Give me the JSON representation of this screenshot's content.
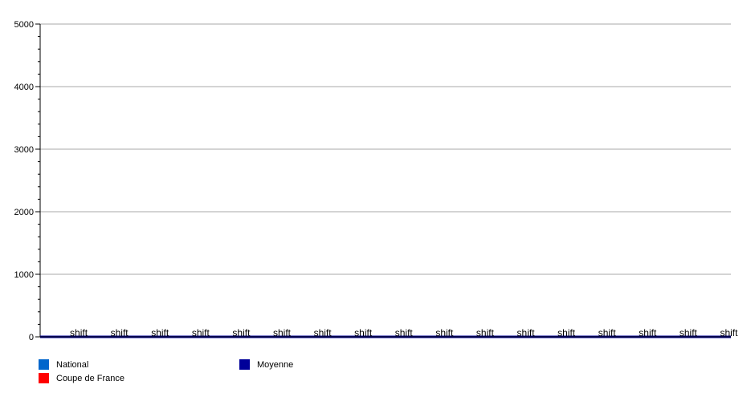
{
  "chart_data": {
    "type": "bar",
    "categories": [
      "shift",
      "shift",
      "shift",
      "shift",
      "shift",
      "shift",
      "shift",
      "shift",
      "shift",
      "shift",
      "shift",
      "shift",
      "shift",
      "shift",
      "shift",
      "shift",
      "shift"
    ],
    "series": [
      {
        "name": "National",
        "color": "#0066cc",
        "values": [
          0,
          0,
          0,
          0,
          0,
          0,
          0,
          0,
          0,
          0,
          0,
          0,
          0,
          0,
          0,
          0,
          0
        ]
      },
      {
        "name": "Coupe de France",
        "color": "#ff0000",
        "values": [
          0,
          0,
          0,
          0,
          0,
          0,
          0,
          0,
          0,
          0,
          0,
          0,
          0,
          0,
          0,
          0,
          0
        ]
      },
      {
        "name": "Moyenne",
        "color": "#000099",
        "type": "line",
        "values": [
          0,
          0,
          0,
          0,
          0,
          0,
          0,
          0,
          0,
          0,
          0,
          0,
          0,
          0,
          0,
          0,
          0
        ]
      }
    ],
    "ylim": [
      0,
      5000
    ],
    "yticks": [
      0,
      1000,
      2000,
      3000,
      4000,
      5000
    ],
    "grid": true,
    "legend": "bottom-left"
  }
}
